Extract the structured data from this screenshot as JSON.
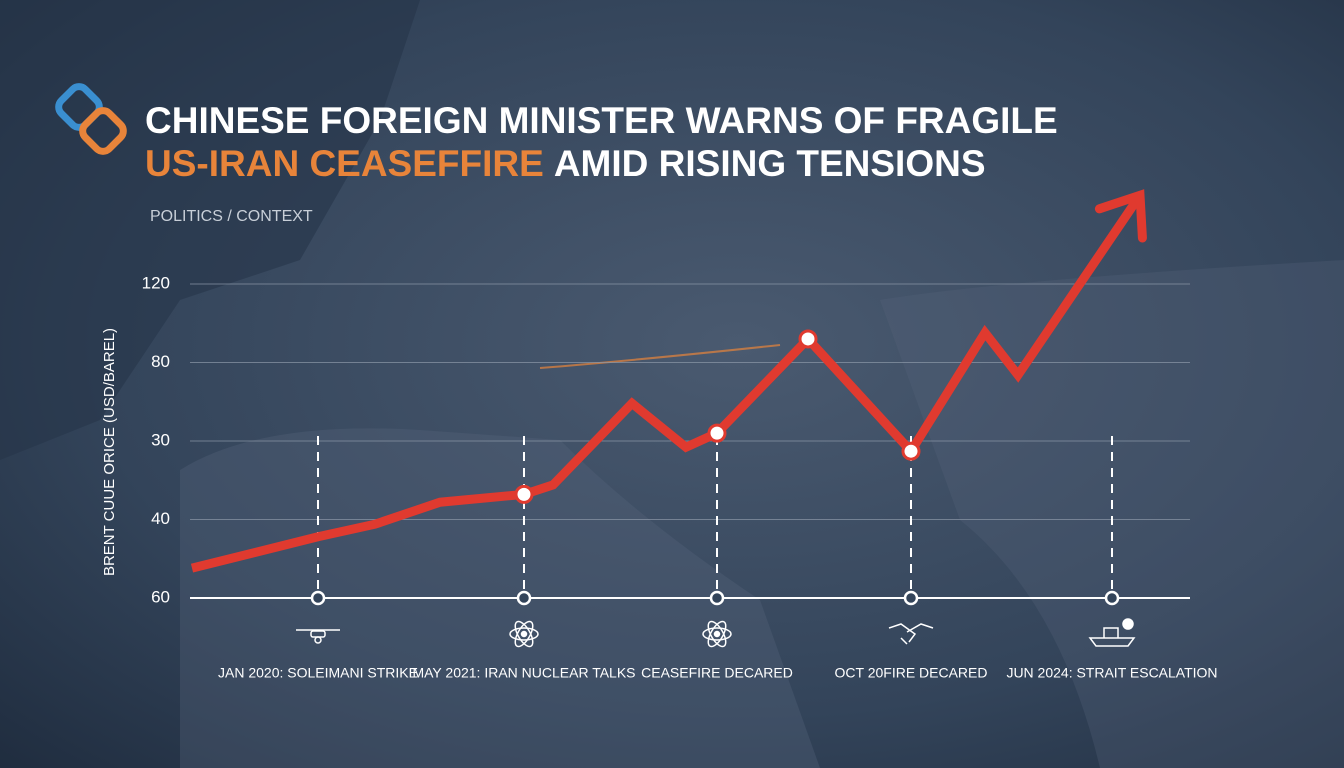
{
  "chart_data": {
    "type": "line",
    "title_line1": "CHINESE FOREIGN MINISTER WARNS OF FRAGILE",
    "title_highlight": "US-IRAN CEASEFFIRE",
    "title_rest": "AMID RISING TENSIONS",
    "subtitle": "POLITICS / CONTEXT",
    "y_label": "BRENT CUUE ORICE (USD/BAREL)",
    "xlim": [
      0,
      100
    ],
    "ylim": [
      0,
      4
    ],
    "yticks": [
      {
        "value": 0,
        "label": "60"
      },
      {
        "value": 1,
        "label": "40"
      },
      {
        "value": 2,
        "label": "30"
      },
      {
        "value": 3,
        "label": "80"
      },
      {
        "value": 4,
        "label": "120"
      }
    ],
    "grid": true,
    "series": [
      {
        "color": "#e03a2f",
        "x": [
          0.2,
          12.8,
          18.5,
          25,
          33.4,
          36.3,
          44.2,
          49.6,
          52.7,
          61.8,
          72.1,
          79.5,
          82.8,
          95
        ],
        "values": [
          0.38,
          0.78,
          0.94,
          1.22,
          1.32,
          1.44,
          2.48,
          1.92,
          2.1,
          3.3,
          1.87,
          3.38,
          2.84,
          5.13
        ]
      }
    ],
    "highlight_points": [
      4,
      8,
      9,
      10
    ],
    "events": [
      {
        "x": 12.8,
        "label": "JAN 2020: SOLEIMANI STRIKE",
        "icon": "drone"
      },
      {
        "x": 33.4,
        "label": "MAY 2021: IRAN NUCLEAR TALKS",
        "icon": "atom"
      },
      {
        "x": 52.7,
        "label": "CEASEFIRE DECARED",
        "icon": "atom"
      },
      {
        "x": 72.1,
        "label": "OCT 20FIRE DECARED",
        "icon": "handshake"
      },
      {
        "x": 92.2,
        "label": "JUN 2024: STRAIT ESCALATION",
        "icon": "ship"
      }
    ]
  }
}
